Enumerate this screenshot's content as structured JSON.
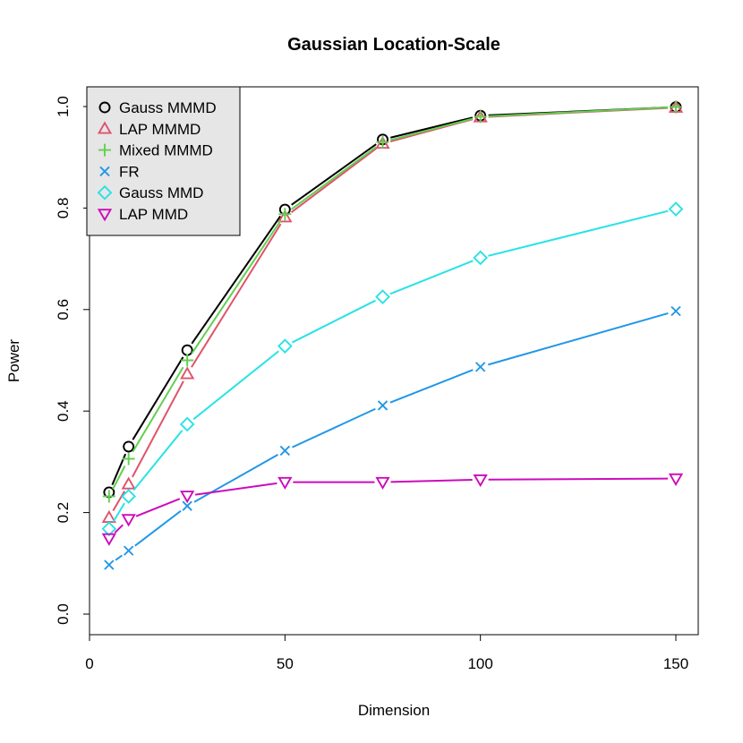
{
  "chart_data": {
    "type": "line",
    "title": "Gaussian Location-Scale",
    "xlabel": "Dimension",
    "ylabel": "Power",
    "xlim": [
      0,
      155
    ],
    "ylim": [
      -0.04,
      1.04
    ],
    "xticks": [
      0,
      50,
      100,
      150
    ],
    "yticks": [
      0.0,
      0.2,
      0.4,
      0.6,
      0.8,
      1.0
    ],
    "xtick_labels": [
      "0",
      "50",
      "100",
      "150"
    ],
    "ytick_labels": [
      "0.0",
      "0.2",
      "0.4",
      "0.6",
      "0.8",
      "1.0"
    ],
    "grid": false,
    "legend_position": "top-left",
    "x": [
      5,
      10,
      25,
      50,
      75,
      100,
      150
    ],
    "series": [
      {
        "name": "Gauss MMMD",
        "color": "#000000",
        "marker": "circle",
        "values": [
          0.24,
          0.33,
          0.52,
          0.797,
          0.935,
          0.982,
          0.999
        ]
      },
      {
        "name": "LAP MMMD",
        "color": "#DF536B",
        "marker": "triangle-up",
        "values": [
          0.19,
          0.256,
          0.473,
          0.782,
          0.927,
          0.979,
          0.998
        ]
      },
      {
        "name": "Mixed MMMD",
        "color": "#61D04F",
        "marker": "plus",
        "values": [
          0.232,
          0.306,
          0.5,
          0.788,
          0.93,
          0.98,
          0.999
        ]
      },
      {
        "name": "FR",
        "color": "#2297E6",
        "marker": "cross",
        "values": [
          0.097,
          0.125,
          0.213,
          0.322,
          0.411,
          0.487,
          0.597
        ]
      },
      {
        "name": "Gauss MMD",
        "color": "#28E2E5",
        "marker": "diamond",
        "values": [
          0.168,
          0.232,
          0.374,
          0.528,
          0.625,
          0.702,
          0.798
        ]
      },
      {
        "name": "LAP MMD",
        "color": "#CD0BBC",
        "marker": "triangle-down",
        "values": [
          0.149,
          0.187,
          0.233,
          0.26,
          0.26,
          0.265,
          0.267
        ]
      }
    ]
  }
}
